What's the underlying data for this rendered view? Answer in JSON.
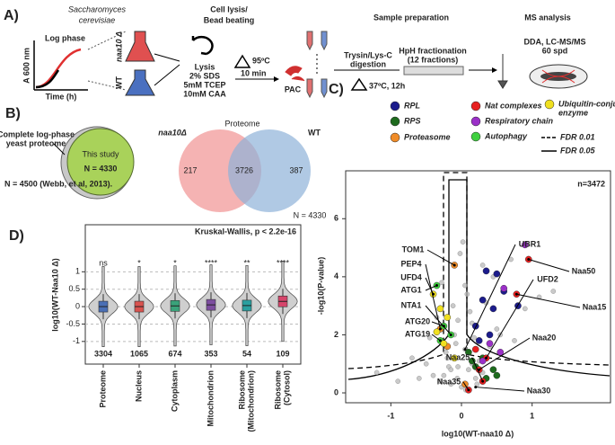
{
  "panel_a": {
    "label": "A)",
    "organism": [
      "Saccharomyces",
      "cerevisiae"
    ],
    "phase": "Log phase",
    "y_axis": "A 600 nm",
    "x_axis": "Time (h)",
    "mutant": "naa10 Δ",
    "wt": "WT",
    "lysis_step": [
      "Cell lysis/",
      "Bead beating"
    ],
    "lysis_buffer": [
      "Lysis",
      "2% SDS",
      "5mM TCEP",
      "10mM CAA"
    ],
    "heat": [
      "95ºC",
      "10 min"
    ],
    "pac": "PAC",
    "sample_prep": "Sample preparation",
    "digestion": [
      "Trysin/Lys-C",
      "digestion"
    ],
    "digestion_cond": "37ºC, 12h",
    "fractionation": [
      "HpH fractionation",
      "(12 fractions)"
    ],
    "ms": "MS analysis",
    "ms_method": [
      "DDA, LC-MS/MS",
      "60 spd"
    ]
  },
  "panel_b": {
    "label": "B)",
    "study": "This study",
    "study_n": "N = 4330",
    "reference": [
      "Complete log-phase",
      "yeast proteome"
    ],
    "reference_n": "N = 4500 (Webb, et al, 2013).",
    "venn_title": "Proteome",
    "mutant": "naa10Δ",
    "wt": "WT",
    "only_mutant": "217",
    "shared": "3726",
    "only_wt": "387",
    "venn_n": "N = 4330"
  },
  "chart_data": [
    {
      "type": "violin",
      "label": "D)",
      "title": "Kruskal-Wallis, p < 2.2e-16",
      "y_label": "log10(WT-Naa10 Δ)",
      "categories": [
        [
          "Proteome"
        ],
        [
          "Nucleus"
        ],
        [
          "Cytoplasm"
        ],
        [
          "Mitochondrion"
        ],
        [
          "Ribosome",
          "(Mitochondrion)"
        ],
        [
          "Ribosome",
          "(Cytosol)"
        ]
      ],
      "values": [
        0,
        0,
        0.02,
        0.05,
        0.03,
        0.15
      ],
      "significance": [
        "ns",
        "*",
        "*",
        "****",
        "**",
        "****"
      ],
      "counts": [
        "3304",
        "1065",
        "674",
        "353",
        "54",
        "109"
      ],
      "colors": [
        "#4a6fb5",
        "#d9534f",
        "#3aa37a",
        "#7d4ea0",
        "#2aa0a0",
        "#d6456b"
      ],
      "ylim": [
        -1.65,
        2.35
      ],
      "yticks": [
        1,
        0.5,
        0,
        -0.5,
        -1
      ]
    },
    {
      "type": "scatter",
      "label": "C)",
      "x_label": "log10(WT-naa10 Δ)",
      "y_label": "-log10(P-value)",
      "annotation": "n=3472",
      "xlim": [
        -1.64,
        2.11
      ],
      "ylim": [
        -0.34,
        7.65
      ],
      "xticks": [
        -1,
        0,
        1
      ],
      "yticks": [
        0,
        2,
        4,
        6
      ],
      "fdr_legend": [
        "FDR 0.01",
        "FDR 0.05"
      ],
      "series": [
        {
          "color": "#b8b8b8",
          "x": [
            -0.25,
            -0.2,
            -0.15,
            -0.1,
            -0.05,
            0,
            0.05,
            0.1,
            0.15,
            0.2,
            0.25,
            -0.3,
            0.3,
            -0.12,
            0.12,
            -0.08,
            0.08,
            -0.18,
            0.18,
            -0.02,
            0.02,
            -0.4,
            0.4,
            -0.5,
            0.5,
            -0.35,
            0.35,
            -0.22,
            0.22,
            -0.06,
            0.06,
            -0.6,
            0.6,
            -0.7,
            0.75,
            -0.9,
            0.9,
            1.1,
            -1.2,
            0.3,
            -0.28,
            0.45,
            0.55,
            -0.45,
            0.15,
            -0.15,
            0.05,
            -0.05,
            0.7,
            1.3
          ],
          "values": [
            0.6,
            1.2,
            0.3,
            2.0,
            0.9,
            0.2,
            1.5,
            0.8,
            2.4,
            0.5,
            1.1,
            0.4,
            0.7,
            3.0,
            2.8,
            1.7,
            3.4,
            0.9,
            1.9,
            4.8,
            5.2,
            0.6,
            1.6,
            1.0,
            2.2,
            2.6,
            3.1,
            1.4,
            0.3,
            0.5,
            0.1,
            0.5,
            3.6,
            1.2,
            1.8,
            0.4,
            2.9,
            3.3,
            0.7,
            4.4,
            3.8,
            4.0,
            2.0,
            1.9,
            1.0,
            0.8,
            3.7,
            2.5,
            4.6,
            3.5
          ]
        },
        {
          "name": "RPL",
          "color": "#1c1c8c",
          "x": [
            0.3,
            0.45,
            0.6,
            0.2,
            0.35,
            0.5,
            0.8,
            0.25,
            0.4
          ],
          "values": [
            3.2,
            2.9,
            3.5,
            2.3,
            4.2,
            4.1,
            3.0,
            1.8,
            2.0
          ]
        },
        {
          "name": "RPS",
          "color": "#1e6b1e",
          "x": [
            0.1,
            0.3,
            0.45,
            0.2,
            0.35,
            0.5,
            0.15
          ],
          "values": [
            1.4,
            1.2,
            0.8,
            0.9,
            0.5,
            0.6,
            1.1
          ]
        },
        {
          "name": "Proteasome",
          "color": "#f08c28",
          "x": [
            -0.3,
            -0.1,
            0.05,
            -0.2
          ],
          "values": [
            2.2,
            4.4,
            0.3,
            1.6
          ]
        },
        {
          "name": "Nat complexes",
          "color": "#e82020",
          "x": [
            0.95,
            0.78,
            0.35,
            0.25,
            0.3,
            0.1,
            0.2
          ],
          "values": [
            4.6,
            3.4,
            1.2,
            0.8,
            0.4,
            0.1,
            1.5
          ]
        },
        {
          "name": "Respiratory chain",
          "color": "#9b30c8",
          "x": [
            0.9,
            0.6,
            0.4,
            0.55,
            0.3
          ],
          "values": [
            5.1,
            3.6,
            1.7,
            1.4,
            1.1
          ]
        },
        {
          "name": "Autophagy",
          "color": "#40d040",
          "x": [
            -0.35,
            -0.25,
            -0.15,
            -0.3
          ],
          "values": [
            3.7,
            2.3,
            2.0,
            1.8
          ]
        },
        {
          "name": [
            "Ubiquitin-conjugating",
            "enzyme"
          ],
          "color": "#f0e020",
          "x": [
            -0.4,
            -0.3,
            -0.2,
            -0.35,
            -0.25,
            -0.1
          ],
          "values": [
            3.4,
            2.9,
            2.6,
            2.1,
            1.7,
            1.2
          ]
        }
      ],
      "labels": [
        {
          "label": "TOM1",
          "x": -0.1,
          "y": 4.4
        },
        {
          "label": "UBR1",
          "x": 0.05,
          "y": 1.5
        },
        {
          "label": "Naa50",
          "x": 0.95,
          "y": 4.6
        },
        {
          "label": "PEP4",
          "x": -0.3,
          "y": 2.2
        },
        {
          "label": "UFD4",
          "x": -0.4,
          "y": 3.4
        },
        {
          "label": "UFD2",
          "x": 0.35,
          "y": 1.2
        },
        {
          "label": "Naa15",
          "x": 0.78,
          "y": 3.4
        },
        {
          "label": "ATG1",
          "x": -0.35,
          "y": 3.7
        },
        {
          "label": "NTA1",
          "x": -0.15,
          "y": 2.0
        },
        {
          "label": "ATG20",
          "x": -0.25,
          "y": 2.3
        },
        {
          "label": "ATG19",
          "x": -0.3,
          "y": 1.8
        },
        {
          "label": "Naa20",
          "x": 0.25,
          "y": 0.8
        },
        {
          "label": "Naa25",
          "x": 0.3,
          "y": 0.4
        },
        {
          "label": "Naa35",
          "x": 0.1,
          "y": 0.1
        },
        {
          "label": "Naa30",
          "x": 0.2,
          "y": 0.2
        }
      ]
    }
  ]
}
